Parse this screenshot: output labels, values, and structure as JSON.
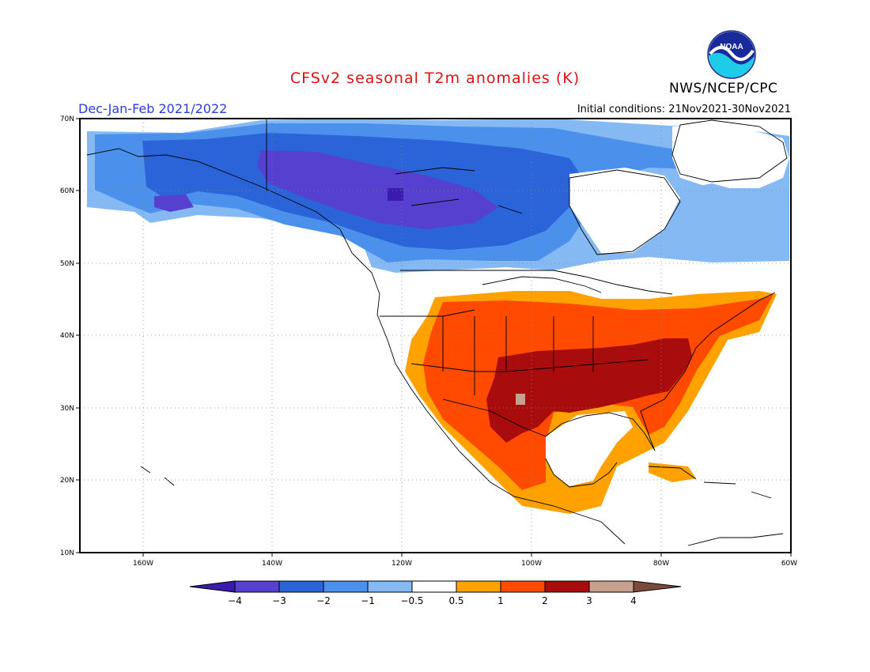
{
  "title": "CFSv2 seasonal T2m anomalies (K)",
  "agency": "NWS/NCEP/CPC",
  "logo_text": "NOAA",
  "season": "Dec-Jan-Feb 2021/2022",
  "initial_conditions": "Initial conditions: 21Nov2021-30Nov2021",
  "lat_labels": [
    "70N",
    "60N",
    "50N",
    "40N",
    "30N",
    "20N",
    "10N"
  ],
  "lon_labels": [
    "160W",
    "140W",
    "120W",
    "100W",
    "80W",
    "60W"
  ],
  "colorbar": {
    "labels": [
      "-4",
      "-3",
      "-2",
      "-1",
      "-0.5",
      "0.5",
      "1",
      "2",
      "3",
      "4"
    ],
    "colors": [
      "#3a1bb0",
      "#5540d0",
      "#2a64d8",
      "#4b91ec",
      "#84b9f4",
      "#ffffff",
      "#ffa200",
      "#ff4a00",
      "#a80c0c",
      "#c8a090",
      "#7a4a3a"
    ]
  }
}
